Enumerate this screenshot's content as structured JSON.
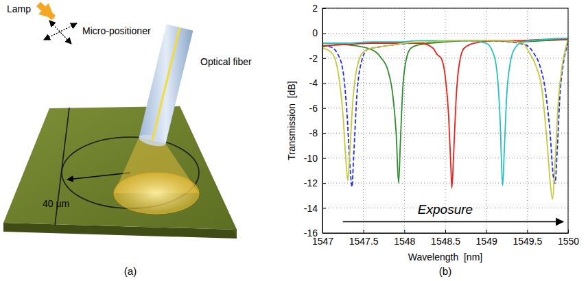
{
  "panel_a": {
    "panel_label": "(a)",
    "lamp_label": "Lamp",
    "positioner_label": "Micro-positioner",
    "fiber_label": "Optical fiber",
    "radius_label": "40 µm"
  },
  "chart_data": {
    "type": "line",
    "panel_label": "(b)",
    "x_label": "Wavelength  [nm]",
    "y_label": "Transmission  [dB]",
    "annotation": "Exposure",
    "xlim": [
      1547,
      1550
    ],
    "xticks": [
      1547,
      1547.5,
      1548,
      1548.5,
      1549,
      1549.5,
      1550
    ],
    "ylim": [
      -16,
      2
    ],
    "yticks": [
      -16,
      -14,
      -12,
      -10,
      -8,
      -6,
      -4,
      -2,
      0,
      2
    ],
    "grid": true,
    "series": [
      {
        "color": "#1f2ff0",
        "line_style": "dashed",
        "x": [
          1547.0,
          1547.1,
          1547.18,
          1547.25,
          1547.3,
          1547.34,
          1547.36,
          1547.38,
          1547.42,
          1547.48,
          1547.55,
          1547.7,
          1547.9,
          1548.1,
          1548.4,
          1548.7,
          1549.0,
          1549.3,
          1549.5,
          1549.58,
          1549.65,
          1549.72,
          1549.78,
          1549.82,
          1549.84,
          1549.87,
          1549.9,
          1549.94,
          1549.98,
          1550.0
        ],
        "values": [
          -1.0,
          -1.1,
          -1.6,
          -3.0,
          -6.5,
          -11.0,
          -12.3,
          -10.0,
          -5.0,
          -2.2,
          -1.3,
          -1.1,
          -0.9,
          -0.8,
          -0.7,
          -0.6,
          -0.6,
          -0.7,
          -1.0,
          -1.6,
          -2.5,
          -4.5,
          -8.0,
          -11.5,
          -12.0,
          -9.0,
          -5.0,
          -2.5,
          -1.2,
          -0.8
        ]
      },
      {
        "color": "#2e8b2e",
        "line_style": "solid",
        "x": [
          1547.0,
          1547.2,
          1547.4,
          1547.55,
          1547.65,
          1547.72,
          1547.8,
          1547.86,
          1547.9,
          1547.93,
          1547.95,
          1547.98,
          1548.02,
          1548.08,
          1548.2,
          1548.5,
          1548.8,
          1549.1,
          1549.4,
          1549.7,
          1550.0
        ],
        "values": [
          -1.1,
          -0.9,
          -1.0,
          -1.2,
          -1.5,
          -2.0,
          -3.0,
          -5.0,
          -8.0,
          -12.0,
          -9.0,
          -4.5,
          -2.2,
          -1.2,
          -0.9,
          -0.7,
          -0.6,
          -0.6,
          -0.7,
          -0.6,
          -0.5
        ]
      },
      {
        "color": "#e8221c",
        "line_style": "solid",
        "x": [
          1547.0,
          1547.3,
          1547.6,
          1547.9,
          1548.2,
          1548.35,
          1548.4,
          1548.45,
          1548.5,
          1548.54,
          1548.57,
          1548.58,
          1548.6,
          1548.63,
          1548.67,
          1548.73,
          1548.85,
          1549.1,
          1549.4,
          1549.7,
          1550.0
        ],
        "values": [
          -1.0,
          -0.9,
          -0.8,
          -0.8,
          -0.8,
          -1.2,
          -1.7,
          -2.0,
          -3.5,
          -6.5,
          -11.0,
          -12.4,
          -10.0,
          -5.5,
          -2.5,
          -1.2,
          -0.8,
          -0.6,
          -0.6,
          -0.5,
          -0.5
        ]
      },
      {
        "color": "#26c0c0",
        "line_style": "solid",
        "x": [
          1547.0,
          1547.3,
          1547.6,
          1547.9,
          1548.2,
          1548.5,
          1548.8,
          1549.0,
          1549.08,
          1549.13,
          1549.17,
          1549.2,
          1549.22,
          1549.25,
          1549.29,
          1549.35,
          1549.45,
          1549.7,
          1550.0
        ],
        "values": [
          -0.8,
          -0.8,
          -0.7,
          -0.7,
          -0.6,
          -0.6,
          -0.6,
          -0.8,
          -1.5,
          -3.0,
          -7.0,
          -12.2,
          -9.5,
          -5.0,
          -2.5,
          -1.2,
          -0.7,
          -0.5,
          -0.4
        ]
      },
      {
        "color": "#c8c83c",
        "line_style": "solid",
        "x": [
          1547.0,
          1547.08,
          1547.15,
          1547.2,
          1547.25,
          1547.29,
          1547.31,
          1547.33,
          1547.37,
          1547.42,
          1547.5,
          1547.6,
          1547.8,
          1548.0,
          1548.3,
          1548.6,
          1548.9,
          1549.2,
          1549.45,
          1549.52,
          1549.6,
          1549.68,
          1549.74,
          1549.79,
          1549.81,
          1549.84,
          1549.88,
          1549.93,
          1549.97,
          1550.0
        ],
        "values": [
          -1.2,
          -1.4,
          -2.0,
          -3.5,
          -6.5,
          -10.5,
          -11.8,
          -10.0,
          -5.5,
          -2.8,
          -1.5,
          -1.2,
          -1.0,
          -0.8,
          -0.7,
          -0.6,
          -0.6,
          -0.6,
          -0.8,
          -1.5,
          -2.5,
          -4.5,
          -8.5,
          -12.5,
          -13.3,
          -10.5,
          -5.5,
          -2.5,
          -1.2,
          -0.5
        ]
      }
    ]
  }
}
